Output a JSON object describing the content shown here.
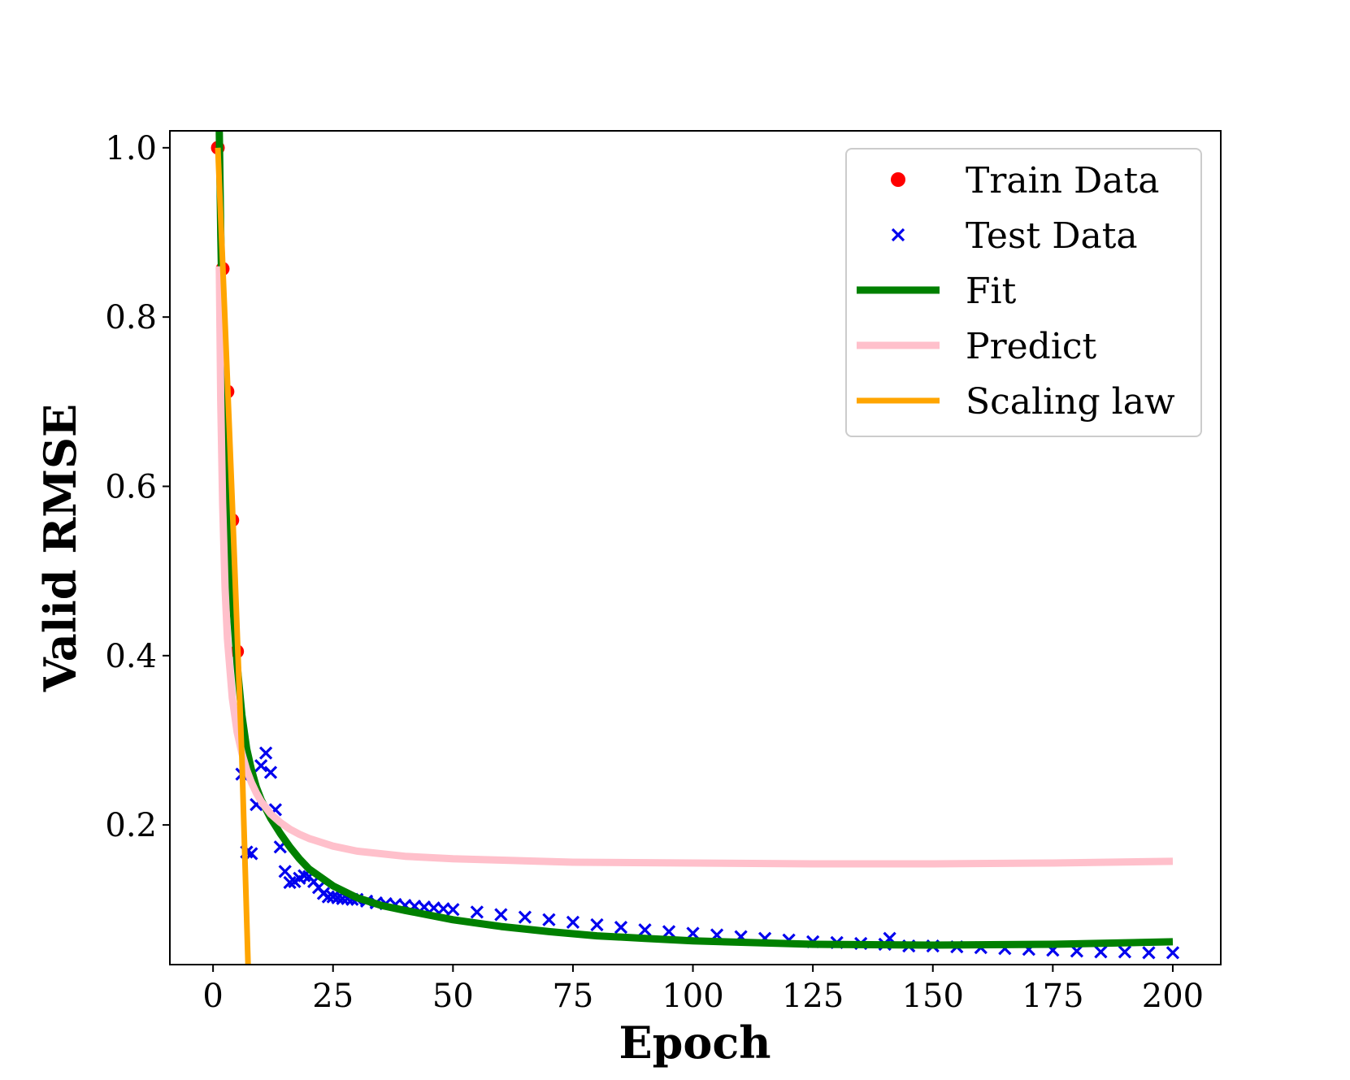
{
  "chart_data": {
    "type": "scatter",
    "xlabel": "Epoch",
    "ylabel": "Valid RMSE",
    "xlim": [
      -9,
      210
    ],
    "ylim": [
      0.035,
      1.02
    ],
    "xticks": [
      0,
      25,
      50,
      75,
      100,
      125,
      150,
      175,
      200
    ],
    "yticks": [
      0.2,
      0.4,
      0.6,
      0.8,
      1.0
    ],
    "xtick_labels": [
      "0",
      "25",
      "50",
      "75",
      "100",
      "125",
      "150",
      "175",
      "200"
    ],
    "ytick_labels": [
      "0.2",
      "0.4",
      "0.6",
      "0.8",
      "1.0"
    ],
    "grid": false,
    "legend_placement": "top-right",
    "colors": {
      "train": "#ff0000",
      "test": "#0000ee",
      "fit": "#008000",
      "predict": "#ffc0cb",
      "scaling": "#ffa500"
    },
    "series": [
      {
        "name": "Train Data",
        "kind": "scatter-dot",
        "x": [
          1,
          2,
          3,
          4,
          5
        ],
        "y": [
          1.0,
          0.857,
          0.712,
          0.56,
          0.405
        ]
      },
      {
        "name": "Test Data",
        "kind": "scatter-x",
        "x": [
          6,
          7,
          8,
          9,
          10,
          11,
          12,
          13,
          14,
          15,
          16,
          17,
          18,
          19,
          20,
          21,
          22,
          23,
          24,
          25,
          26,
          27,
          28,
          29,
          30,
          32,
          34,
          36,
          38,
          40,
          42,
          44,
          46,
          48,
          50,
          55,
          60,
          65,
          70,
          75,
          80,
          85,
          90,
          95,
          100,
          105,
          110,
          115,
          120,
          125,
          130,
          135,
          140,
          141,
          145,
          150,
          155,
          160,
          165,
          170,
          175,
          180,
          185,
          190,
          195,
          200
        ],
        "y": [
          0.26,
          0.168,
          0.166,
          0.224,
          0.27,
          0.285,
          0.262,
          0.218,
          0.174,
          0.145,
          0.132,
          0.133,
          0.137,
          0.14,
          0.139,
          0.133,
          0.126,
          0.119,
          0.115,
          0.115,
          0.114,
          0.113,
          0.113,
          0.112,
          0.112,
          0.11,
          0.108,
          0.107,
          0.106,
          0.105,
          0.104,
          0.103,
          0.102,
          0.101,
          0.1,
          0.097,
          0.094,
          0.091,
          0.088,
          0.085,
          0.082,
          0.079,
          0.076,
          0.074,
          0.072,
          0.07,
          0.068,
          0.066,
          0.064,
          0.062,
          0.061,
          0.06,
          0.059,
          0.066,
          0.057,
          0.057,
          0.056,
          0.055,
          0.054,
          0.053,
          0.052,
          0.051,
          0.05,
          0.05,
          0.049,
          0.049
        ]
      },
      {
        "name": "Fit",
        "kind": "line",
        "x": [
          1.3,
          1.6,
          2,
          2.5,
          3,
          4,
          5,
          6,
          7,
          8,
          9,
          10,
          12,
          14,
          16,
          18,
          20,
          25,
          30,
          35,
          40,
          50,
          60,
          70,
          80,
          90,
          100,
          125,
          150,
          175,
          200
        ],
        "y": [
          1.02,
          0.9,
          0.78,
          0.66,
          0.58,
          0.47,
          0.39,
          0.33,
          0.29,
          0.265,
          0.245,
          0.23,
          0.208,
          0.19,
          0.174,
          0.16,
          0.148,
          0.128,
          0.114,
          0.105,
          0.099,
          0.088,
          0.08,
          0.074,
          0.069,
          0.066,
          0.063,
          0.059,
          0.058,
          0.059,
          0.062
        ]
      },
      {
        "name": "Predict",
        "kind": "line",
        "x": [
          1.3,
          1.6,
          2,
          2.5,
          3,
          4,
          5,
          6,
          7,
          8,
          9,
          10,
          12,
          14,
          16,
          18,
          20,
          25,
          30,
          40,
          50,
          75,
          100,
          125,
          150,
          175,
          200
        ],
        "y": [
          0.86,
          0.7,
          0.58,
          0.48,
          0.42,
          0.35,
          0.31,
          0.285,
          0.265,
          0.25,
          0.238,
          0.228,
          0.213,
          0.203,
          0.195,
          0.189,
          0.184,
          0.175,
          0.169,
          0.163,
          0.16,
          0.156,
          0.155,
          0.154,
          0.154,
          0.155,
          0.157
        ]
      },
      {
        "name": "Scaling law",
        "kind": "line",
        "x": [
          1,
          2,
          3,
          4,
          5,
          6,
          7.3
        ],
        "y": [
          1.0,
          0.865,
          0.725,
          0.58,
          0.43,
          0.28,
          0.035
        ]
      }
    ]
  }
}
